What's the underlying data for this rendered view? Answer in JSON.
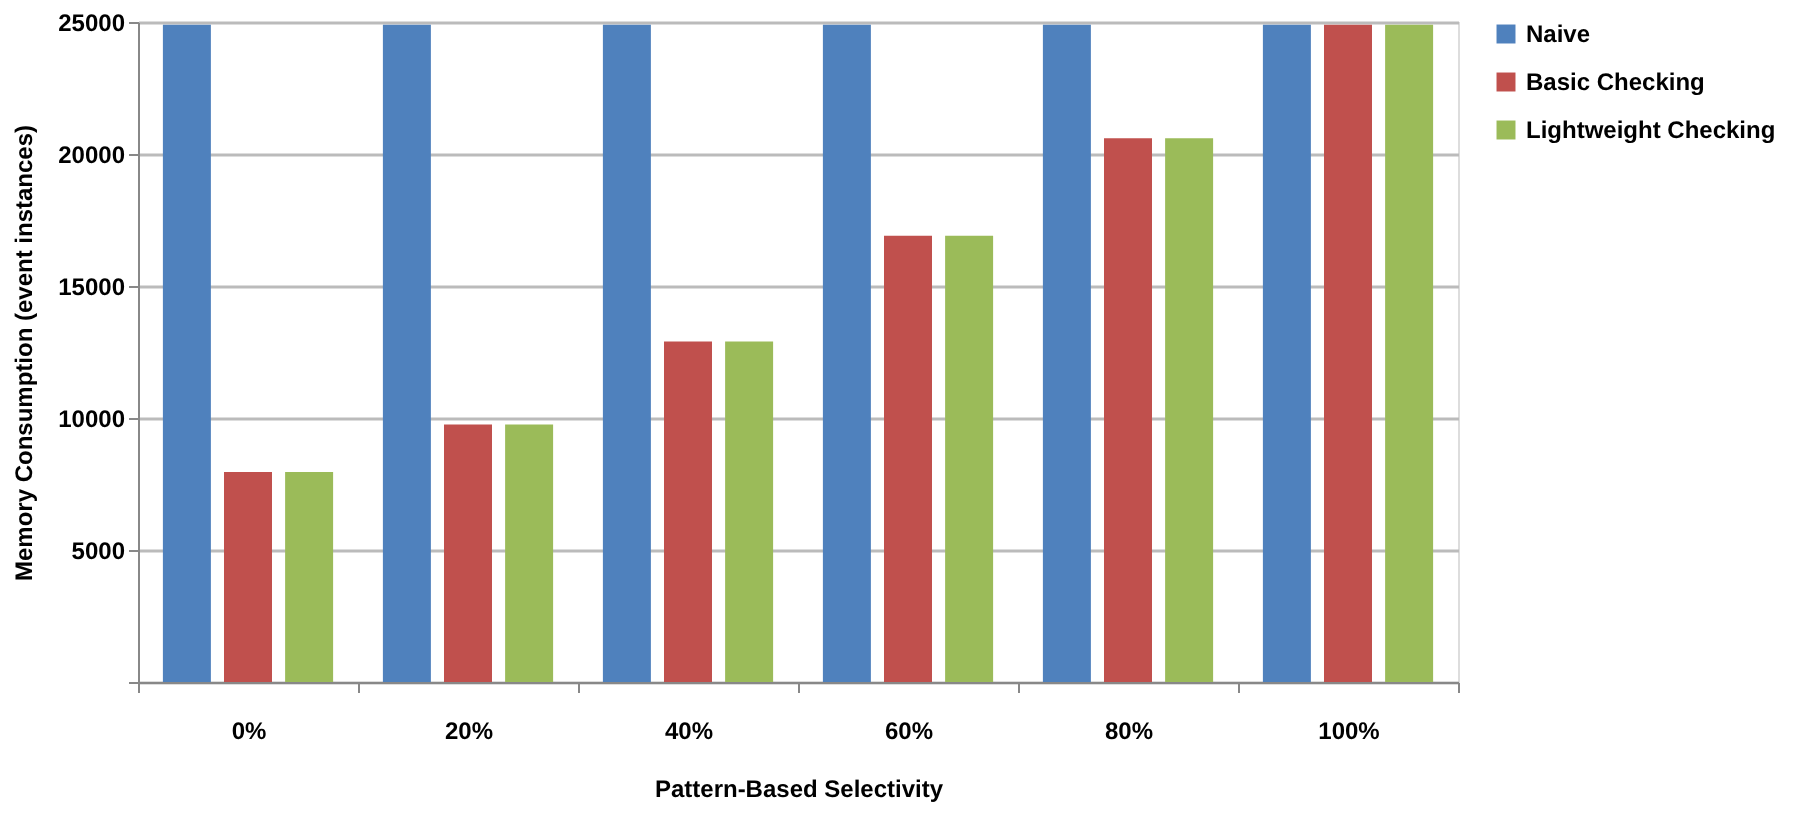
{
  "chart_data": {
    "type": "bar",
    "xlabel": "Pattern-Based Selectivity",
    "ylabel": "Memory Consumption (event  instances)",
    "categories": [
      "0%",
      "20%",
      "40%",
      "60%",
      "80%",
      "100%"
    ],
    "series": [
      {
        "name": "Naive",
        "color": "#4f81bd",
        "values": [
          24900,
          24900,
          24900,
          24900,
          24900,
          24900
        ]
      },
      {
        "name": "Basic Checking",
        "color": "#c0504d",
        "values": [
          7950,
          9750,
          12900,
          16900,
          20600,
          24900
        ]
      },
      {
        "name": "Lightweight Checking",
        "color": "#9bbb59",
        "values": [
          7950,
          9750,
          12900,
          16900,
          20600,
          24900
        ]
      }
    ],
    "ylim": [
      0,
      25000
    ],
    "yticks": [
      {
        "value": 0,
        "label": null
      },
      5000,
      10000,
      15000,
      20000,
      25000
    ],
    "grid": "y",
    "legend": "right"
  }
}
